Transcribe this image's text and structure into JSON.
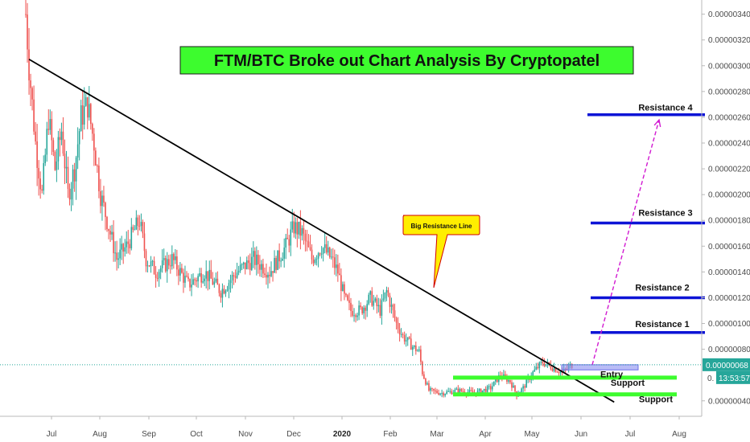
{
  "chart_data": {
    "type": "candlestick",
    "title": "FTM/BTC Broke out Chart Analysis By Cryptopatel",
    "y_axis": {
      "position": "right",
      "range": [
        2.8e-07,
        3.51e-06
      ],
      "ticks": [
        "0.00000340",
        "0.00000320",
        "0.00000300",
        "0.00000280",
        "0.00000260",
        "0.00000240",
        "0.00000220",
        "0.00000200",
        "0.00000180",
        "0.00000160",
        "0.00000140",
        "0.00000120",
        "0.00000100",
        "0.00000080",
        "0.00000040"
      ]
    },
    "x_axis": {
      "ticks": [
        "Jul",
        "Aug",
        "Sep",
        "Oct",
        "Nov",
        "Dec",
        "2020",
        "Feb",
        "Mar",
        "Apr",
        "May",
        "Jun",
        "Jul",
        "Aug"
      ],
      "bold_ticks": [
        "2020"
      ]
    },
    "last_price": {
      "label": "0.00000068",
      "value": 6.8e-07,
      "countdown": "13:53:57",
      "partial_label": "0."
    },
    "price_path": [
      [
        0,
        3.4e-06
      ],
      [
        2,
        3e-06
      ],
      [
        6,
        2.4e-06
      ],
      [
        10,
        2e-06
      ],
      [
        14,
        2.6e-06
      ],
      [
        18,
        2.2e-06
      ],
      [
        22,
        2.5e-06
      ],
      [
        26,
        2e-06
      ],
      [
        30,
        2.2e-06
      ],
      [
        34,
        2.6e-06
      ],
      [
        38,
        2.7e-06
      ],
      [
        42,
        2.4e-06
      ],
      [
        46,
        2e-06
      ],
      [
        50,
        1.8e-06
      ],
      [
        56,
        1.5e-06
      ],
      [
        62,
        1.6e-06
      ],
      [
        70,
        1.8e-06
      ],
      [
        74,
        1.5e-06
      ],
      [
        80,
        1.4e-06
      ],
      [
        90,
        1.5e-06
      ],
      [
        100,
        1.3e-06
      ],
      [
        110,
        1.4e-06
      ],
      [
        120,
        1.25e-06
      ],
      [
        130,
        1.4e-06
      ],
      [
        140,
        1.5e-06
      ],
      [
        150,
        1.4e-06
      ],
      [
        160,
        1.6e-06
      ],
      [
        165,
        1.75e-06
      ],
      [
        170,
        1.7e-06
      ],
      [
        176,
        1.5e-06
      ],
      [
        182,
        1.6e-06
      ],
      [
        188,
        1.5e-06
      ],
      [
        192,
        1.4e-06
      ],
      [
        196,
        1.2e-06
      ],
      [
        200,
        1.1e-06
      ],
      [
        206,
        1.1e-06
      ],
      [
        212,
        1.2e-06
      ],
      [
        218,
        1.1e-06
      ],
      [
        222,
        1.25e-06
      ],
      [
        228,
        1e-06
      ],
      [
        232,
        9e-07
      ],
      [
        238,
        8.2e-07
      ],
      [
        242,
        7.8e-07
      ],
      [
        244,
        6.2e-07
      ],
      [
        248,
        4.8e-07
      ],
      [
        256,
        4.6e-07
      ],
      [
        266,
        4.8e-07
      ],
      [
        276,
        4.6e-07
      ],
      [
        286,
        5e-07
      ],
      [
        292,
        6e-07
      ],
      [
        298,
        5.5e-07
      ],
      [
        302,
        4.5e-07
      ],
      [
        306,
        5e-07
      ],
      [
        312,
        6.2e-07
      ],
      [
        318,
        7e-07
      ],
      [
        324,
        6.6e-07
      ],
      [
        330,
        6.2e-07
      ],
      [
        336,
        6.8e-07
      ]
    ],
    "trendline": {
      "label": "Big Resistance Line",
      "from": [
        2,
        3.05e-06
      ],
      "to": [
        362,
        3.9e-07
      ]
    },
    "resistance_levels": [
      {
        "name": "Resistance 4",
        "value": 2.62e-06
      },
      {
        "name": "Resistance 3",
        "value": 1.78e-06
      },
      {
        "name": "Resistance 2",
        "value": 1.2e-06
      },
      {
        "name": "Resistance 1",
        "value": 9.3e-07
      }
    ],
    "support_levels": [
      {
        "name": "Support",
        "value": 5.8e-07
      },
      {
        "name": "Support",
        "value": 4.5e-07
      }
    ],
    "entry": {
      "label": "Entry",
      "value_low": 6.4e-07,
      "value_high": 6.8e-07
    },
    "projection": {
      "from": [
        328,
        6.8e-07
      ],
      "to": [
        355,
        2.58e-06
      ]
    },
    "colors": {
      "up": "#26a69a",
      "down": "#ef5350",
      "resistance": "#0d14d6",
      "support": "#3dfc2e",
      "title_bg": "#3dfc2e",
      "callout": "#ffee00",
      "projection": "#d11ad1",
      "entry_box": "#8a8ff0",
      "price_badge": "#26a69a"
    }
  }
}
